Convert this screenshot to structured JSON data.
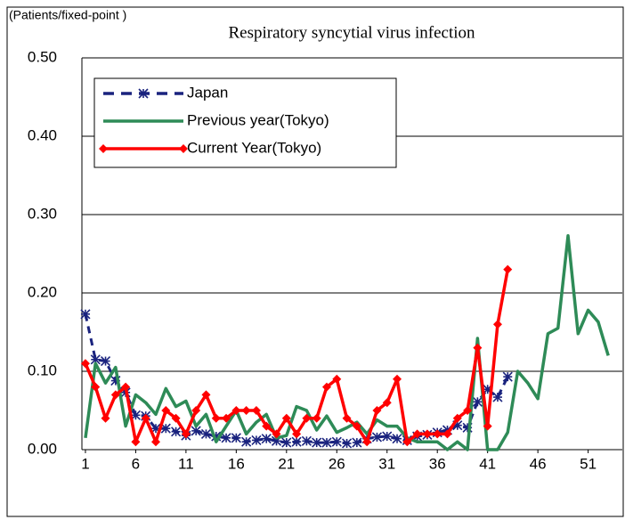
{
  "chart_data": {
    "type": "line",
    "title": "Respiratory syncytial virus infection",
    "y_label": "(Patients/fixed-point )",
    "x": [
      1,
      2,
      3,
      4,
      5,
      6,
      7,
      8,
      9,
      10,
      11,
      12,
      13,
      14,
      15,
      16,
      17,
      18,
      19,
      20,
      21,
      22,
      23,
      24,
      25,
      26,
      27,
      28,
      29,
      30,
      31,
      32,
      33,
      34,
      35,
      36,
      37,
      38,
      39,
      40,
      41,
      42,
      43,
      44,
      45,
      46,
      47,
      48,
      49,
      50,
      51,
      52,
      53
    ],
    "xlim": [
      0.65,
      54.4
    ],
    "xticks": [
      1,
      6,
      11,
      16,
      21,
      26,
      31,
      36,
      41,
      46,
      51
    ],
    "ylim": [
      0,
      0.5
    ],
    "yticks": [
      {
        "value": 0,
        "label": "0.00"
      },
      {
        "value": 0.1,
        "label": "0.10"
      },
      {
        "value": 0.2,
        "label": "0.20"
      },
      {
        "value": 0.3,
        "label": "0.30"
      },
      {
        "value": 0.4,
        "label": "0.40"
      },
      {
        "value": 0.5,
        "label": "0.50"
      }
    ],
    "grid": true,
    "legend": "upper left",
    "series": [
      {
        "name": "Japan",
        "color": "#1a237e",
        "style": "dashed",
        "marker": "asterisk",
        "values": [
          0.173,
          0.115,
          0.113,
          0.088,
          0.073,
          0.044,
          0.043,
          0.027,
          0.027,
          0.023,
          0.018,
          0.024,
          0.02,
          0.017,
          0.015,
          0.015,
          0.01,
          0.012,
          0.014,
          0.011,
          0.009,
          0.01,
          0.011,
          0.009,
          0.009,
          0.01,
          0.008,
          0.009,
          0.014,
          0.016,
          0.017,
          0.014,
          0.012,
          0.017,
          0.019,
          0.022,
          0.025,
          0.031,
          0.028,
          0.061,
          0.077,
          0.067,
          0.093,
          null,
          null,
          null,
          null,
          null,
          null,
          null,
          null,
          null,
          null
        ]
      },
      {
        "name": "Previous year(Tokyo)",
        "color": "#2e8b57",
        "style": "solid",
        "marker": "none",
        "values": [
          0.015,
          0.11,
          0.085,
          0.105,
          0.03,
          0.07,
          0.06,
          0.045,
          0.078,
          0.055,
          0.062,
          0.03,
          0.045,
          0.01,
          0.03,
          0.05,
          0.02,
          0.035,
          0.045,
          0.015,
          0.018,
          0.055,
          0.05,
          0.025,
          0.043,
          0.022,
          0.028,
          0.035,
          0.02,
          0.038,
          0.03,
          0.03,
          0.015,
          0.01,
          0.01,
          0.01,
          0.0,
          0.01,
          0.0,
          0.142,
          0.0,
          0.0,
          0.022,
          0.1,
          0.085,
          0.065,
          0.148,
          0.155,
          0.273,
          0.148,
          0.178,
          0.163,
          0.12
        ]
      },
      {
        "name": "Current Year(Tokyo)",
        "color": "#ff0000",
        "style": "solid",
        "marker": "diamond",
        "values": [
          0.11,
          0.08,
          0.04,
          0.07,
          0.08,
          0.01,
          0.04,
          0.01,
          0.05,
          0.04,
          0.02,
          0.05,
          0.07,
          0.04,
          0.04,
          0.05,
          0.05,
          0.05,
          0.03,
          0.02,
          0.04,
          0.02,
          0.04,
          0.04,
          0.08,
          0.09,
          0.04,
          0.03,
          0.01,
          0.05,
          0.06,
          0.09,
          0.01,
          0.02,
          0.02,
          0.02,
          0.02,
          0.04,
          0.05,
          0.13,
          0.03,
          0.16,
          0.23,
          null,
          null,
          null,
          null,
          null,
          null,
          null,
          null,
          null,
          null
        ]
      }
    ]
  }
}
